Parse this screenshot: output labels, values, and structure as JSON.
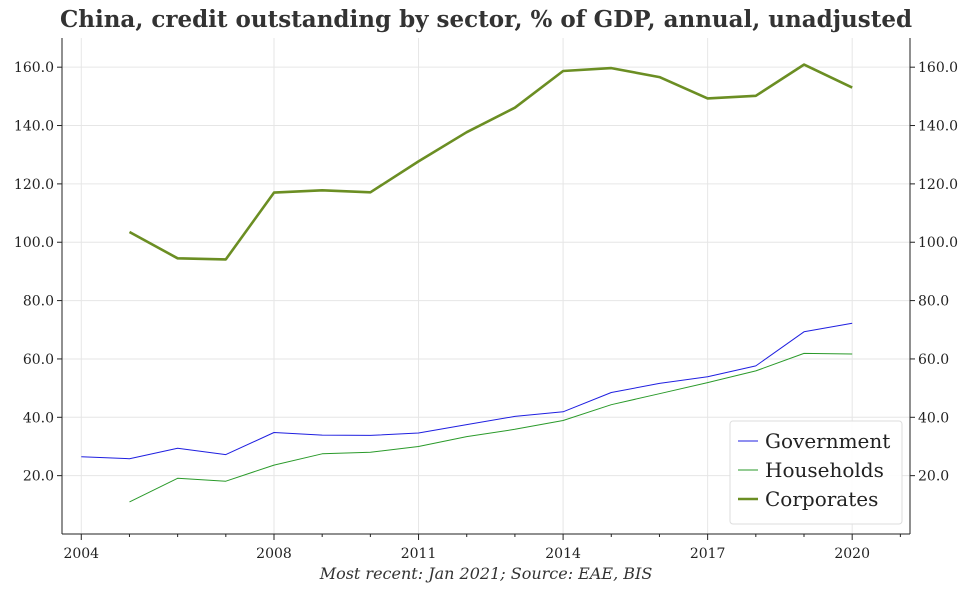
{
  "chart_data": {
    "type": "line",
    "title": "China, credit outstanding by sector, % of GDP, annual, unadjusted",
    "caption": "Most recent: Jan 2021; Source: EAE, BIS",
    "xlabel": "",
    "ylabel": "",
    "xlim": [
      2003.6,
      2021.2
    ],
    "ylim": [
      0,
      170
    ],
    "x_ticks": [
      2004,
      2008,
      2011,
      2014,
      2017,
      2020
    ],
    "x_tick_labels": [
      "2004",
      "2008",
      "2011",
      "2014",
      "2017",
      "2020"
    ],
    "y_ticks": [
      20,
      40,
      60,
      80,
      100,
      120,
      140,
      160
    ],
    "y_tick_labels": [
      "20.0",
      "40.0",
      "60.0",
      "80.0",
      "100.0",
      "120.0",
      "140.0",
      "160.0"
    ],
    "grid": true,
    "legend_position": "bottom-right",
    "series": [
      {
        "name": "Government",
        "color": "#1f1fe0",
        "x": [
          2004.0,
          2005.0,
          2006.0,
          2007.0,
          2008.0,
          2009.0,
          2010.0,
          2011.0,
          2012.0,
          2013.0,
          2014.0,
          2015.0,
          2016.0,
          2017.0,
          2018.0,
          2019.0,
          2020.0
        ],
        "values": [
          26.5,
          25.8,
          29.4,
          27.2,
          34.8,
          33.9,
          33.8,
          34.6,
          37.5,
          40.3,
          41.9,
          48.5,
          51.6,
          53.9,
          57.6,
          69.3,
          72.2
        ]
      },
      {
        "name": "Households",
        "color": "#2a9a2a",
        "x": [
          2005.0,
          2006.0,
          2007.0,
          2008.0,
          2009.0,
          2010.0,
          2011.0,
          2012.0,
          2013.0,
          2014.0,
          2015.0,
          2016.0,
          2017.0,
          2018.0,
          2019.0,
          2020.0
        ],
        "values": [
          11.0,
          19.1,
          18.1,
          23.6,
          27.5,
          28.0,
          30.0,
          33.4,
          35.9,
          38.9,
          44.3,
          48.1,
          51.9,
          55.9,
          61.9,
          61.7
        ]
      },
      {
        "name": "Corporates",
        "color": "#6b8e23",
        "x": [
          2005.0,
          2006.0,
          2007.0,
          2008.0,
          2009.0,
          2010.0,
          2011.0,
          2012.0,
          2013.0,
          2014.0,
          2015.0,
          2016.0,
          2017.0,
          2018.0,
          2019.0,
          2020.0
        ],
        "values": [
          103.5,
          94.5,
          94.1,
          117.0,
          117.8,
          117.1,
          127.7,
          137.7,
          146.1,
          158.7,
          159.7,
          156.6,
          149.3,
          150.2,
          160.9,
          153.0
        ]
      }
    ]
  }
}
